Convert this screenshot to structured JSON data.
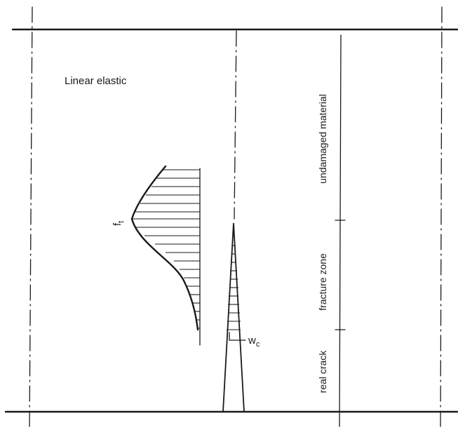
{
  "labels": {
    "linear_elastic": "Linear elastic",
    "ft_main": "f",
    "ft_sub": "t",
    "wc_main": "w",
    "wc_sub": "c",
    "undamaged_material": "undamaged material",
    "fracture_zone": "fracture  zone",
    "real_crack": "real crack"
  }
}
